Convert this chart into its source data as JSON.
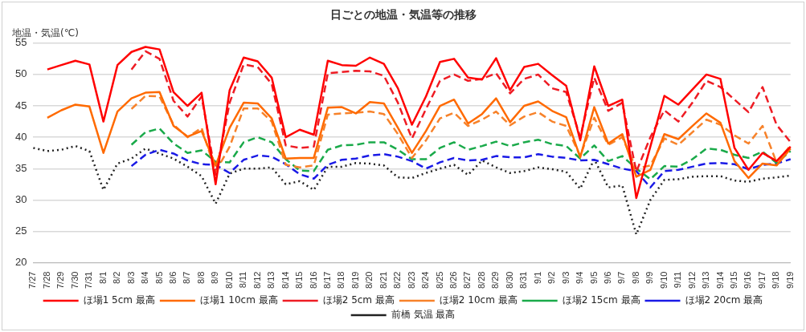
{
  "chart_data": {
    "type": "line",
    "title": "日ごとの地温・気温等の推移",
    "ylabel": "地温・気温(℃)",
    "categories": [
      "7/27",
      "7/28",
      "7/29",
      "7/30",
      "7/31",
      "8/1",
      "8/2",
      "8/3",
      "8/4",
      "8/5",
      "8/6",
      "8/7",
      "8/8",
      "8/9",
      "8/10",
      "8/11",
      "8/12",
      "8/13",
      "8/14",
      "8/15",
      "8/16",
      "8/17",
      "8/18",
      "8/19",
      "8/20",
      "8/21",
      "8/22",
      "8/23",
      "8/24",
      "8/25",
      "8/26",
      "8/27",
      "8/28",
      "8/29",
      "8/30",
      "8/31",
      "9/1",
      "9/2",
      "9/3",
      "9/4",
      "9/5",
      "9/6",
      "9/7",
      "9/8",
      "9/9",
      "9/10",
      "9/11",
      "9/12",
      "9/13",
      "9/14",
      "9/15",
      "9/16",
      "9/17",
      "9/18",
      "9/19"
    ],
    "ylim": [
      20,
      55
    ],
    "yticks": [
      20,
      25,
      30,
      35,
      40,
      45,
      50,
      55
    ],
    "grid": "y",
    "legend": "bottom",
    "series": [
      {
        "name": "ほ場1 5cm 最高",
        "color": "#ff0000",
        "line_style": "solid",
        "values": [
          null,
          50.8,
          51.5,
          52.2,
          51.6,
          42.5,
          51.5,
          53.6,
          54.4,
          54.0,
          47.2,
          45.0,
          47.1,
          32.5,
          47.5,
          52.7,
          52.1,
          49.5,
          40.0,
          41.2,
          40.4,
          52.2,
          51.5,
          51.4,
          52.7,
          51.7,
          47.8,
          42.0,
          46.5,
          52.0,
          52.5,
          49.5,
          49.2,
          52.6,
          47.5,
          51.2,
          51.7,
          49.9,
          48.2,
          39.5,
          51.3,
          45.0,
          46.0,
          30.3,
          38.5,
          46.6,
          45.2,
          47.6,
          50.0,
          49.3,
          38.3,
          34.8,
          37.5,
          36.2,
          38.5
        ]
      },
      {
        "name": "ほ場1 10cm 最高",
        "color": "#ff6a00",
        "line_style": "solid",
        "values": [
          null,
          43.1,
          44.3,
          45.2,
          44.9,
          37.5,
          44.1,
          46.2,
          47.1,
          47.2,
          41.8,
          40.1,
          41.0,
          35.5,
          41.5,
          45.5,
          45.4,
          43.0,
          36.6,
          36.7,
          36.7,
          44.7,
          44.8,
          43.8,
          45.6,
          45.4,
          41.5,
          37.5,
          41.0,
          45.0,
          46.0,
          42.2,
          43.7,
          46.2,
          42.4,
          45.0,
          45.7,
          44.2,
          43.2,
          36.8,
          44.8,
          39.0,
          40.5,
          33.7,
          34.8,
          40.5,
          39.7,
          41.8,
          43.8,
          42.3,
          36.2,
          33.5,
          35.8,
          35.5,
          38.2
        ]
      },
      {
        "name": "ほ場2 5cm 最高",
        "color": "#ee1c24",
        "line_style": "dashed",
        "values": [
          null,
          null,
          null,
          null,
          null,
          null,
          null,
          50.8,
          53.7,
          52.5,
          45.8,
          43.3,
          46.5,
          34.0,
          45.5,
          51.6,
          51.2,
          48.5,
          38.7,
          38.3,
          38.5,
          50.2,
          50.4,
          50.6,
          50.5,
          49.8,
          45.5,
          39.8,
          44.5,
          49.0,
          50.0,
          49.0,
          49.3,
          50.2,
          47.0,
          49.3,
          50.0,
          47.8,
          47.2,
          40.0,
          49.5,
          44.2,
          45.5,
          34.5,
          40.0,
          44.3,
          42.5,
          45.5,
          49.0,
          48.0,
          46.0,
          44.0,
          48.0,
          42.0,
          39.2
        ]
      },
      {
        "name": "ほ場2 10cm 最高",
        "color": "#f7822a",
        "line_style": "dashed",
        "values": [
          null,
          null,
          null,
          null,
          null,
          null,
          null,
          44.5,
          46.6,
          46.5,
          42.0,
          40.0,
          41.5,
          34.5,
          38.5,
          44.6,
          44.6,
          42.5,
          35.6,
          35.2,
          35.5,
          43.6,
          43.8,
          43.9,
          44.1,
          43.7,
          40.5,
          36.7,
          39.5,
          43.0,
          43.9,
          41.8,
          42.8,
          44.1,
          41.9,
          43.3,
          44.0,
          42.5,
          41.8,
          37.0,
          43.1,
          38.8,
          40.0,
          35.0,
          35.5,
          39.8,
          38.8,
          40.8,
          42.8,
          42.0,
          40.3,
          39.0,
          41.8,
          36.0,
          38.7
        ]
      },
      {
        "name": "ほ場2 15cm 最高",
        "color": "#1aaa4a",
        "line_style": "dashed",
        "values": [
          null,
          null,
          null,
          null,
          null,
          null,
          null,
          38.8,
          40.8,
          41.4,
          39.0,
          37.5,
          37.9,
          36.1,
          36.0,
          39.2,
          40.0,
          39.2,
          36.5,
          34.7,
          34.6,
          38.0,
          38.7,
          38.8,
          39.2,
          39.2,
          38.0,
          36.5,
          36.5,
          38.3,
          39.2,
          38.0,
          38.6,
          39.3,
          38.6,
          39.2,
          39.6,
          38.9,
          38.6,
          36.6,
          38.7,
          36.2,
          37.0,
          35.0,
          33.3,
          35.4,
          35.3,
          36.5,
          38.2,
          38.0,
          37.2,
          36.7,
          37.7,
          35.9,
          37.8
        ]
      },
      {
        "name": "ほ場2 20cm 最高",
        "color": "#1a1ae6",
        "line_style": "dashed",
        "values": [
          null,
          null,
          null,
          null,
          null,
          null,
          null,
          35.4,
          37.2,
          38.0,
          37.4,
          36.3,
          35.7,
          35.6,
          34.3,
          36.4,
          37.1,
          36.9,
          35.7,
          34.1,
          33.4,
          35.6,
          36.4,
          36.6,
          37.1,
          37.3,
          36.9,
          36.2,
          35.0,
          36.0,
          36.7,
          36.3,
          36.4,
          37.0,
          36.8,
          36.8,
          37.3,
          36.9,
          36.7,
          36.3,
          36.4,
          35.7,
          35.0,
          34.6,
          32.0,
          34.6,
          34.8,
          35.3,
          35.8,
          35.9,
          35.7,
          34.9,
          35.6,
          35.8,
          36.5
        ]
      },
      {
        "name": "前橋 気温 最高",
        "color": "#222222",
        "line_style": "dotted",
        "values": [
          38.3,
          37.8,
          38.0,
          38.6,
          37.8,
          31.6,
          35.8,
          36.6,
          38.2,
          37.4,
          36.6,
          35.3,
          33.8,
          29.4,
          34.2,
          35.0,
          35.0,
          35.2,
          32.5,
          33.0,
          31.6,
          35.3,
          35.3,
          35.9,
          35.8,
          35.5,
          33.6,
          33.5,
          34.3,
          35.0,
          35.6,
          34.0,
          36.3,
          35.2,
          34.3,
          34.6,
          35.2,
          34.9,
          34.5,
          31.8,
          36.5,
          32.0,
          32.3,
          24.5,
          30.0,
          33.2,
          33.3,
          33.7,
          33.8,
          33.8,
          33.1,
          32.9,
          33.4,
          33.6,
          33.9
        ]
      }
    ]
  }
}
